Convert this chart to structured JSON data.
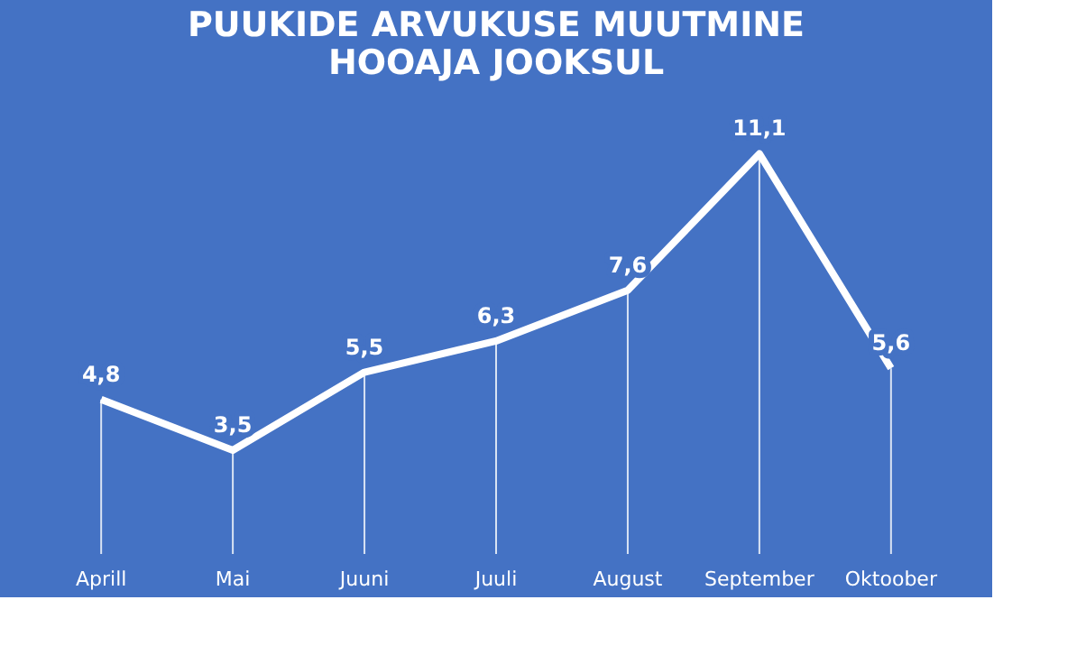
{
  "chart_data": {
    "type": "line",
    "title": [
      "PUUKIDE  ARVUKUSE  MUUTMINE",
      "HOOAJA JOOKSUL"
    ],
    "categories": [
      "Aprill",
      "Mai",
      "Juuni",
      "Juuli",
      "August",
      "September",
      "Oktoober"
    ],
    "series": [
      {
        "color": "#ffffff",
        "values": [
          4.8,
          3.5,
          5.5,
          6.3,
          7.6,
          11.1,
          5.6
        ],
        "value_labels": [
          "4,8",
          "3,5",
          "5,5",
          "6,3",
          "7,6",
          "11,1",
          "5,6"
        ]
      }
    ],
    "grid": "x",
    "marker": "none",
    "line_style": "solid",
    "tick_labels": "x"
  }
}
